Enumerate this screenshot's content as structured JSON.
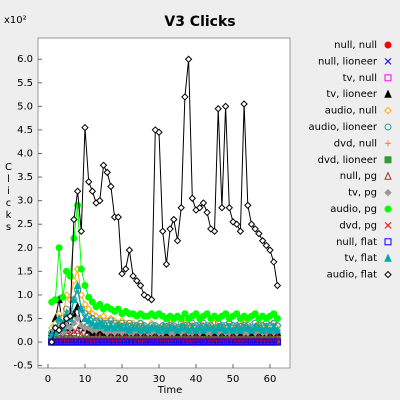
{
  "chart_data": {
    "type": "line",
    "title": "V3 Clicks",
    "xlabel": "Time",
    "ylabel": "Clicks",
    "y_multiplier": "x10²",
    "x": [
      1,
      2,
      3,
      4,
      5,
      6,
      7,
      8,
      9,
      10,
      11,
      12,
      13,
      14,
      15,
      16,
      17,
      18,
      19,
      20,
      21,
      22,
      23,
      24,
      25,
      26,
      27,
      28,
      29,
      30,
      31,
      32,
      33,
      34,
      35,
      36,
      37,
      38,
      39,
      40,
      41,
      42,
      43,
      44,
      45,
      46,
      47,
      48,
      49,
      50,
      51,
      52,
      53,
      54,
      55,
      56,
      57,
      58,
      59,
      60,
      61,
      62
    ],
    "xlim": [
      -2.7,
      65.4
    ],
    "xticks": [
      0,
      10,
      20,
      30,
      40,
      50,
      60
    ],
    "ylim": [
      -0.55,
      6.45
    ],
    "yticks": [
      -0.5,
      {
        "value": 0,
        "label": "0.0"
      },
      0.5,
      {
        "value": 1,
        "label": "1.0"
      },
      1.5,
      {
        "value": 2,
        "label": "2.0"
      },
      2.5,
      {
        "value": 3,
        "label": "3.0"
      },
      3.5,
      {
        "value": 4,
        "label": "4.0"
      },
      4.5,
      {
        "value": 5,
        "label": "5.0"
      },
      5.5,
      {
        "value": 6,
        "label": "6.0"
      }
    ],
    "grid": false,
    "legend": "right",
    "series": [
      {
        "name": "null, null",
        "color": "#ff0000",
        "marker": "circle-filled",
        "values": [
          0,
          0,
          0,
          0,
          0,
          0,
          0,
          0,
          0,
          0,
          0,
          0,
          0,
          0,
          0,
          0,
          0,
          0,
          0,
          0,
          0,
          0,
          0,
          0,
          0,
          0,
          0,
          0,
          0,
          0,
          0,
          0,
          0,
          0,
          0,
          0,
          0,
          0,
          0,
          0,
          0,
          0,
          0,
          0,
          0,
          0,
          0,
          0,
          0,
          0,
          0,
          0,
          0,
          0,
          0,
          0,
          0,
          0,
          0,
          0,
          0,
          0
        ]
      },
      {
        "name": "null, lioneer",
        "color": "#0000ff",
        "marker": "x",
        "values": [
          0,
          0,
          0,
          0,
          0,
          0,
          0,
          0,
          0,
          0,
          0,
          0,
          0,
          0,
          0,
          0,
          0,
          0,
          0,
          0,
          0,
          0,
          0,
          0,
          0,
          0,
          0,
          0,
          0,
          0,
          0,
          0,
          0,
          0,
          0,
          0,
          0,
          0,
          0,
          0,
          0,
          0,
          0,
          0,
          0,
          0,
          0,
          0,
          0,
          0,
          0,
          0,
          0,
          0,
          0,
          0,
          0,
          0,
          0,
          0,
          0,
          0
        ]
      },
      {
        "name": "tv, null",
        "color": "#ff00ff",
        "marker": "square-open",
        "values": [
          0,
          0,
          0,
          0,
          0,
          0,
          0,
          0,
          0,
          0,
          0,
          0,
          0,
          0,
          0,
          0,
          0,
          0,
          0,
          0,
          0,
          0,
          0,
          0,
          0,
          0,
          0,
          0,
          0,
          0,
          0,
          0,
          0,
          0,
          0,
          0,
          0,
          0,
          0,
          0,
          0,
          0,
          0,
          0,
          0,
          0,
          0,
          0,
          0,
          0,
          0,
          0,
          0,
          0,
          0,
          0,
          0,
          0,
          0,
          0,
          0,
          0
        ]
      },
      {
        "name": "tv, lioneer",
        "color": "#000000",
        "marker": "triangle-filled",
        "values": [
          0.2,
          0.5,
          0.9,
          0.3,
          0.5,
          0.3,
          0.6,
          0.75,
          0.35,
          0.3,
          0.25,
          0.2,
          0.2,
          0.25,
          0.2,
          0.15,
          0.2,
          0.15,
          0.2,
          0.15,
          0.15,
          0.2,
          0.15,
          0.15,
          0.2,
          0.15,
          0.1,
          0.15,
          0.2,
          0.15,
          0.15,
          0.2,
          0.15,
          0.1,
          0.15,
          0.2,
          0.15,
          0.15,
          0.2,
          0.15,
          0.15,
          0.2,
          0.15,
          0.1,
          0.15,
          0.2,
          0.15,
          0.15,
          0.2,
          0.15,
          0.15,
          0.2,
          0.15,
          0.1,
          0.15,
          0.2,
          0.15,
          0.15,
          0.2,
          0.15,
          0.15,
          0.2
        ]
      },
      {
        "name": "audio, null",
        "color": "#ffa500",
        "marker": "diamond-open",
        "values": [
          0.3,
          0.4,
          0.6,
          0.5,
          1.0,
          0.9,
          1.3,
          1.55,
          1.0,
          0.8,
          0.7,
          0.6,
          0.55,
          0.5,
          0.55,
          0.45,
          0.5,
          0.45,
          0.4,
          0.45,
          0.4,
          0.35,
          0.4,
          0.35,
          0.4,
          0.35,
          0.3,
          0.4,
          0.35,
          0.3,
          0.35,
          0.3,
          0.4,
          0.35,
          0.3,
          0.35,
          0.4,
          0.3,
          0.35,
          0.3,
          0.4,
          0.35,
          0.3,
          0.35,
          0.4,
          0.3,
          0.35,
          0.3,
          0.4,
          0.35,
          0.3,
          0.35,
          0.4,
          0.3,
          0.35,
          0.3,
          0.4,
          0.35,
          0.3,
          0.35,
          0.4,
          0.35
        ]
      },
      {
        "name": "audio, lioneer",
        "color": "#339999",
        "marker": "circle-open",
        "values": [
          0.2,
          0.3,
          0.45,
          0.4,
          0.7,
          0.6,
          0.9,
          1.1,
          0.7,
          0.6,
          0.55,
          0.5,
          0.45,
          0.45,
          0.4,
          0.4,
          0.45,
          0.4,
          0.35,
          0.4,
          0.35,
          0.4,
          0.35,
          0.35,
          0.4,
          0.35,
          0.3,
          0.35,
          0.35,
          0.3,
          0.35,
          0.4,
          0.35,
          0.35,
          0.3,
          0.4,
          0.35,
          0.35,
          0.4,
          0.35,
          0.35,
          0.4,
          0.35,
          0.35,
          0.3,
          0.4,
          0.35,
          0.35,
          0.4,
          0.35,
          0.35,
          0.4,
          0.35,
          0.35,
          0.3,
          0.4,
          0.35,
          0.35,
          0.4,
          0.35,
          0.4,
          0.35
        ]
      },
      {
        "name": "dvd, null",
        "color": "#ff7f3f",
        "marker": "plus",
        "values": [
          0.03,
          0.03,
          0.03,
          0.03,
          0.03,
          0.03,
          0.03,
          0.03,
          0.03,
          0.03,
          0.03,
          0.03,
          0.03,
          0.03,
          0.03,
          0.03,
          0.03,
          0.03,
          0.03,
          0.03,
          0.03,
          0.03,
          0.03,
          0.03,
          0.03,
          0.03,
          0.03,
          0.03,
          0.03,
          0.03,
          0.03,
          0.03,
          0.03,
          0.03,
          0.03,
          0.03,
          0.03,
          0.03,
          0.03,
          0.03,
          0.03,
          0.03,
          0.03,
          0.03,
          0.03,
          0.03,
          0.03,
          0.03,
          0.03,
          0.03,
          0.03,
          0.03,
          0.03,
          0.03,
          0.03,
          0.03,
          0.03,
          0.03,
          0.03,
          0.03,
          0.03,
          0.03
        ]
      },
      {
        "name": "dvd, lioneer",
        "color": "#339933",
        "marker": "square-filled",
        "values": [
          0.05,
          0.05,
          0.05,
          0.05,
          0.05,
          0.05,
          0.05,
          0.05,
          0.05,
          0.05,
          0.05,
          0.05,
          0.05,
          0.05,
          0.05,
          0.05,
          0.05,
          0.05,
          0.05,
          0.05,
          0.05,
          0.05,
          0.05,
          0.05,
          0.05,
          0.05,
          0.05,
          0.05,
          0.05,
          0.05,
          0.05,
          0.05,
          0.05,
          0.05,
          0.05,
          0.05,
          0.05,
          0.05,
          0.05,
          0.05,
          0.05,
          0.05,
          0.05,
          0.05,
          0.05,
          0.05,
          0.05,
          0.05,
          0.05,
          0.05,
          0.05,
          0.05,
          0.05,
          0.05,
          0.05,
          0.05,
          0.05,
          0.05,
          0.05,
          0.05,
          0.05,
          0.05
        ]
      },
      {
        "name": "null, pg",
        "color": "#993333",
        "marker": "triangle-open",
        "values": [
          0.05,
          0.1,
          0.2,
          0.1,
          0.2,
          0.15,
          0.2,
          0.25,
          0.15,
          0.1,
          0.1,
          0.05,
          0.1,
          0.1,
          0.05,
          0.1,
          0.1,
          0.05,
          0.1,
          0.1,
          0.1,
          0.05,
          0.1,
          0.1,
          0.05,
          0.1,
          0.1,
          0.05,
          0.1,
          0.1,
          0.1,
          0.05,
          0.1,
          0.1,
          0.05,
          0.1,
          0.1,
          0.05,
          0.1,
          0.1,
          0.1,
          0.05,
          0.1,
          0.1,
          0.05,
          0.1,
          0.1,
          0.05,
          0.1,
          0.1,
          0.1,
          0.05,
          0.1,
          0.1,
          0.05,
          0.1,
          0.1,
          0.05,
          0.1,
          0.1,
          0.05,
          0.1
        ]
      },
      {
        "name": "tv, pg",
        "color": "#999999",
        "marker": "diamond-filled",
        "values": [
          0.1,
          0.2,
          0.3,
          0.2,
          0.35,
          0.3,
          0.4,
          0.5,
          0.35,
          0.3,
          0.3,
          0.25,
          0.25,
          0.3,
          0.25,
          0.2,
          0.25,
          0.2,
          0.25,
          0.2,
          0.25,
          0.2,
          0.2,
          0.25,
          0.2,
          0.25,
          0.2,
          0.2,
          0.25,
          0.2,
          0.2,
          0.25,
          0.2,
          0.2,
          0.25,
          0.2,
          0.25,
          0.2,
          0.2,
          0.25,
          0.2,
          0.25,
          0.2,
          0.2,
          0.25,
          0.2,
          0.25,
          0.2,
          0.2,
          0.25,
          0.2,
          0.25,
          0.2,
          0.2,
          0.25,
          0.2,
          0.25,
          0.2,
          0.2,
          0.25,
          0.2,
          0.25
        ]
      },
      {
        "name": "audio, pg",
        "color": "#00ff00",
        "marker": "circle-filled",
        "values": [
          0.85,
          0.9,
          2.0,
          0.95,
          1.5,
          1.4,
          2.2,
          2.9,
          1.55,
          1.2,
          0.95,
          0.85,
          0.75,
          0.8,
          0.7,
          0.75,
          0.7,
          0.65,
          0.7,
          0.6,
          0.65,
          0.6,
          0.6,
          0.55,
          0.6,
          0.55,
          0.55,
          0.6,
          0.55,
          0.6,
          0.55,
          0.5,
          0.55,
          0.5,
          0.55,
          0.5,
          0.6,
          0.5,
          0.55,
          0.6,
          0.5,
          0.55,
          0.6,
          0.5,
          0.55,
          0.5,
          0.55,
          0.6,
          0.5,
          0.55,
          0.6,
          0.5,
          0.55,
          0.5,
          0.55,
          0.6,
          0.5,
          0.55,
          0.5,
          0.55,
          0.6,
          0.5
        ]
      },
      {
        "name": "dvd, pg",
        "color": "#ff0000",
        "marker": "x",
        "values": [
          0.02,
          0.02,
          0.02,
          0.02,
          0.02,
          0.02,
          0.02,
          0.02,
          0.02,
          0.02,
          0.02,
          0.02,
          0.02,
          0.02,
          0.02,
          0.02,
          0.02,
          0.02,
          0.02,
          0.02,
          0.02,
          0.02,
          0.02,
          0.02,
          0.02,
          0.02,
          0.02,
          0.02,
          0.02,
          0.02,
          0.02,
          0.02,
          0.02,
          0.02,
          0.02,
          0.02,
          0.02,
          0.02,
          0.02,
          0.02,
          0.02,
          0.02,
          0.02,
          0.02,
          0.02,
          0.02,
          0.02,
          0.02,
          0.02,
          0.02,
          0.02,
          0.02,
          0.02,
          0.02,
          0.02,
          0.02,
          0.02,
          0.02,
          0.02,
          0.02,
          0.02,
          0.02
        ]
      },
      {
        "name": "null, flat",
        "color": "#0000ff",
        "marker": "square-open",
        "values": [
          0,
          0,
          0,
          0,
          0,
          0,
          0,
          0,
          0,
          0,
          0,
          0,
          0,
          0,
          0,
          0,
          0,
          0,
          0,
          0,
          0,
          0,
          0,
          0,
          0,
          0,
          0,
          0,
          0,
          0,
          0,
          0,
          0,
          0,
          0,
          0,
          0,
          0,
          0,
          0,
          0,
          0,
          0,
          0,
          0,
          0,
          0,
          0,
          0,
          0,
          0,
          0,
          0,
          0,
          0,
          0,
          0,
          0,
          0,
          0,
          0,
          0
        ]
      },
      {
        "name": "tv, flat",
        "color": "#00aaaa",
        "marker": "triangle-filled",
        "values": [
          0.15,
          0.2,
          0.5,
          0.3,
          0.6,
          0.5,
          0.9,
          1.2,
          0.7,
          0.5,
          0.45,
          0.4,
          0.35,
          0.4,
          0.35,
          0.3,
          0.35,
          0.3,
          0.35,
          0.3,
          0.3,
          0.25,
          0.3,
          0.3,
          0.25,
          0.3,
          0.25,
          0.3,
          0.3,
          0.25,
          0.3,
          0.25,
          0.3,
          0.3,
          0.25,
          0.3,
          0.3,
          0.25,
          0.3,
          0.25,
          0.3,
          0.25,
          0.3,
          0.3,
          0.25,
          0.3,
          0.3,
          0.25,
          0.3,
          0.25,
          0.3,
          0.25,
          0.3,
          0.3,
          0.25,
          0.3,
          0.3,
          0.25,
          0.3,
          0.25,
          0.3,
          0.25
        ]
      },
      {
        "name": "audio, flat",
        "color": "#000000",
        "marker": "diamond-open",
        "values": [
          0.0,
          0.3,
          0.25,
          0.35,
          0.5,
          0.55,
          2.6,
          3.2,
          2.35,
          4.55,
          3.4,
          3.2,
          2.95,
          3.0,
          3.75,
          3.6,
          3.3,
          2.65,
          2.65,
          1.45,
          1.55,
          1.95,
          1.4,
          1.3,
          1.2,
          1.0,
          0.95,
          0.9,
          4.5,
          4.45,
          2.35,
          1.65,
          2.4,
          2.6,
          2.15,
          2.85,
          5.2,
          6.0,
          3.05,
          2.8,
          2.85,
          2.95,
          2.75,
          2.4,
          2.35,
          4.95,
          2.85,
          5.0,
          2.85,
          2.55,
          2.5,
          2.35,
          5.05,
          2.9,
          2.5,
          2.4,
          2.3,
          2.15,
          2.05,
          1.95,
          1.7,
          1.2
        ]
      }
    ]
  }
}
